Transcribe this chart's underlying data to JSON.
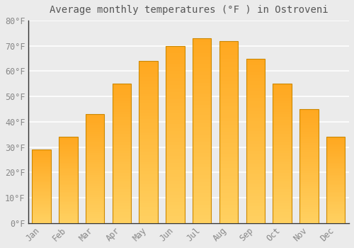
{
  "title": "Average monthly temperatures (°F ) in Ostroveni",
  "months": [
    "Jan",
    "Feb",
    "Mar",
    "Apr",
    "May",
    "Jun",
    "Jul",
    "Aug",
    "Sep",
    "Oct",
    "Nov",
    "Dec"
  ],
  "values": [
    29,
    34,
    43,
    55,
    64,
    70,
    73,
    72,
    65,
    55,
    45,
    34
  ],
  "bar_color_main": "#FFA820",
  "bar_color_light": "#FFD060",
  "bar_edge_color": "#CC8800",
  "ylim": [
    0,
    80
  ],
  "yticks": [
    0,
    10,
    20,
    30,
    40,
    50,
    60,
    70,
    80
  ],
  "ytick_labels": [
    "0°F",
    "10°F",
    "20°F",
    "30°F",
    "40°F",
    "50°F",
    "60°F",
    "70°F",
    "80°F"
  ],
  "background_color": "#ebebeb",
  "grid_color": "#ffffff",
  "title_fontsize": 10,
  "tick_fontsize": 8.5,
  "tick_color": "#888888",
  "title_color": "#555555",
  "font_family": "monospace",
  "bar_width": 0.7,
  "num_gradient_steps": 50
}
